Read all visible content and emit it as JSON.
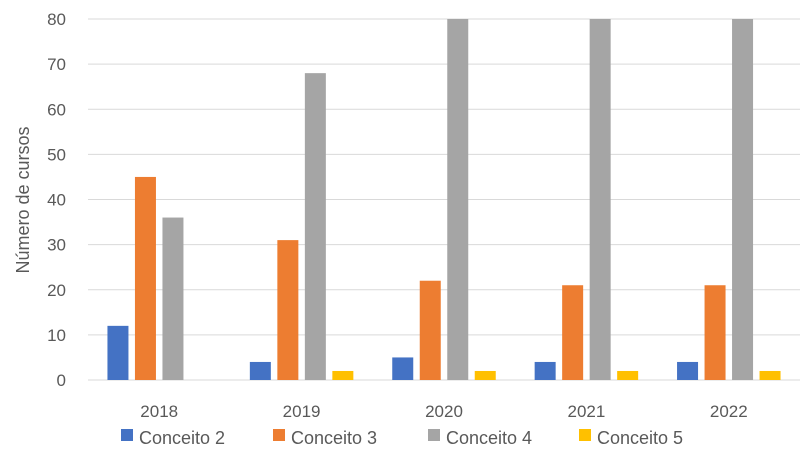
{
  "chart_data": {
    "type": "bar",
    "title": "",
    "xlabel": "",
    "ylabel": "Número de cursos",
    "ylim": [
      0,
      80
    ],
    "yticks": [
      0,
      10,
      20,
      30,
      40,
      50,
      60,
      70,
      80
    ],
    "grid": true,
    "legend_position": "bottom",
    "categories": [
      "2018",
      "2019",
      "2020",
      "2021",
      "2022"
    ],
    "series": [
      {
        "name": "Conceito 2",
        "color": "#4472C4",
        "values": [
          12,
          4,
          5,
          4,
          4
        ]
      },
      {
        "name": "Conceito 3",
        "color": "#ED7D31",
        "values": [
          45,
          31,
          22,
          21,
          21
        ]
      },
      {
        "name": "Conceito 4",
        "color": "#A5A5A5",
        "values": [
          36,
          68,
          80,
          80,
          80
        ]
      },
      {
        "name": "Conceito 5",
        "color": "#FFC000",
        "values": [
          0,
          2,
          2,
          2,
          2
        ]
      }
    ]
  }
}
